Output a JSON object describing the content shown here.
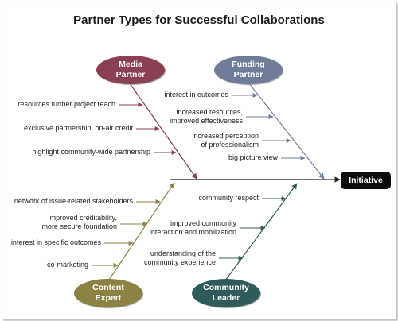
{
  "title": "Partner Types for Successful Collaborations",
  "effect": "Initiative",
  "colors": {
    "media": "#8a3f52",
    "funding": "#6f7d99",
    "content": "#8c8244",
    "community": "#2f5c5a",
    "spine": "#222222"
  },
  "categories": {
    "media": {
      "line1": "Media",
      "line2": "Partner",
      "causes": [
        "resources further project reach",
        "exclusive partnership, on-air credit",
        "highlight community-wide partnership"
      ]
    },
    "funding": {
      "line1": "Funding",
      "line2": "Partner",
      "causes": [
        "interest in outcomes",
        "increased resources,\nimproved effectiveness",
        "increased perception\nof professionalism",
        "big picture view"
      ]
    },
    "content": {
      "line1": "Content",
      "line2": "Expert",
      "causes": [
        "network of issue-related stakeholders",
        "improved creditability,\nmore secure foundation",
        "interest in specific outcomes",
        "co-marketing"
      ]
    },
    "community": {
      "line1": "Community",
      "line2": "Leader",
      "causes": [
        "community respect",
        "improved community\ninteraction and mobilization",
        "understanding of the\ncommunity experience"
      ]
    }
  }
}
